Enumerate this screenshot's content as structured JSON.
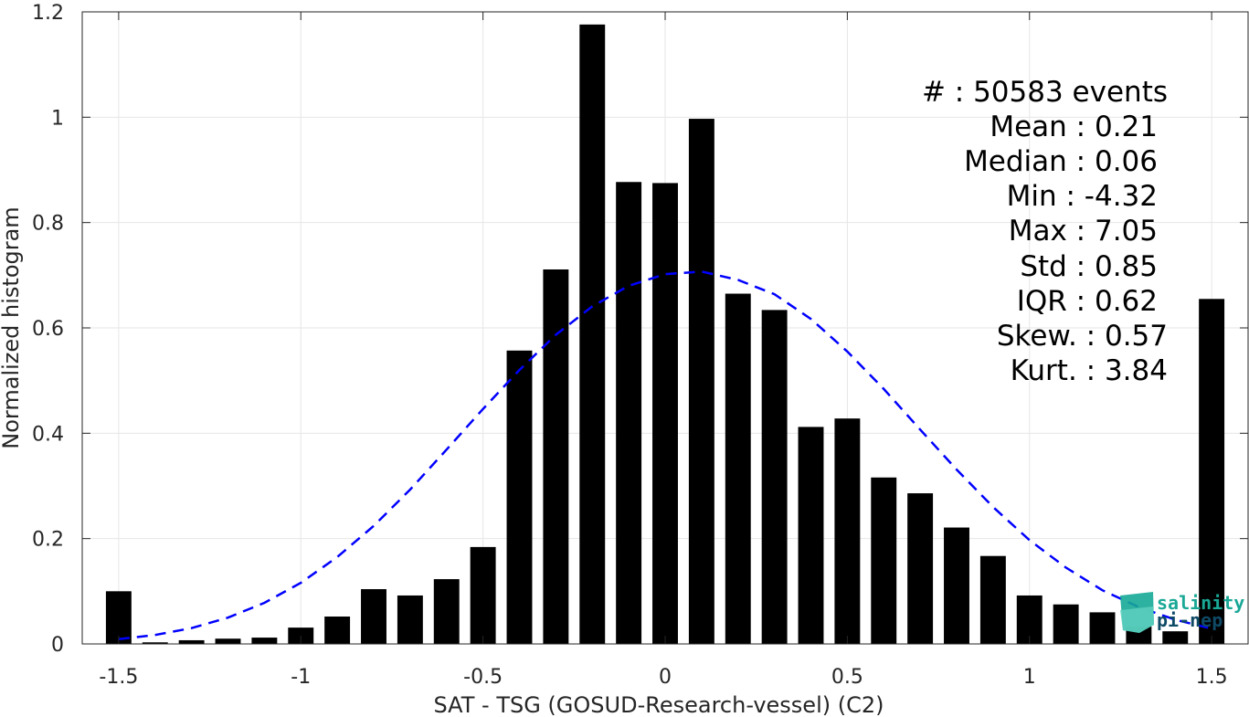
{
  "chart_data": {
    "type": "bar",
    "xlabel": "SAT - TSG (GOSUD-Research-vessel) (C2)",
    "ylabel": "Normalized histogram",
    "xlim": [
      -1.6,
      1.6
    ],
    "ylim": [
      0,
      1.2
    ],
    "grid": true,
    "x_ticks": [
      -1.5,
      -1,
      -0.5,
      0,
      0.5,
      1,
      1.5
    ],
    "x_tick_labels": [
      "-1.5",
      "-1",
      "-0.5",
      "0",
      "0.5",
      "1",
      "1.5"
    ],
    "y_ticks": [
      0,
      0.2,
      0.4,
      0.6,
      0.8,
      1,
      1.2
    ],
    "y_tick_labels": [
      "0",
      "0.2",
      "0.4",
      "0.6",
      "0.8",
      "1",
      "1.2"
    ],
    "bar_width": 0.07,
    "bars": {
      "x": [
        -1.5,
        -1.4,
        -1.3,
        -1.2,
        -1.1,
        -1.0,
        -0.9,
        -0.8,
        -0.7,
        -0.6,
        -0.5,
        -0.4,
        -0.3,
        -0.2,
        -0.1,
        0.0,
        0.1,
        0.2,
        0.3,
        0.4,
        0.5,
        0.6,
        0.7,
        0.8,
        0.9,
        1.0,
        1.1,
        1.2,
        1.3,
        1.4,
        1.5
      ],
      "values": [
        0.1,
        0.003,
        0.007,
        0.01,
        0.012,
        0.031,
        0.052,
        0.104,
        0.092,
        0.123,
        0.184,
        0.557,
        0.711,
        1.176,
        0.877,
        0.875,
        0.997,
        0.665,
        0.634,
        0.412,
        0.428,
        0.316,
        0.286,
        0.221,
        0.167,
        0.092,
        0.075,
        0.06,
        0.033,
        0.024,
        0.655
      ],
      "color": "#000000"
    },
    "fit_curve": {
      "style": "dashed",
      "color": "#0000ff",
      "x": [
        -1.5,
        -1.4,
        -1.3,
        -1.2,
        -1.1,
        -1.0,
        -0.9,
        -0.8,
        -0.7,
        -0.6,
        -0.5,
        -0.4,
        -0.3,
        -0.2,
        -0.1,
        0.0,
        0.1,
        0.2,
        0.3,
        0.4,
        0.5,
        0.6,
        0.7,
        0.8,
        0.9,
        1.0,
        1.1,
        1.2,
        1.3,
        1.4,
        1.5
      ],
      "y": [
        0.009,
        0.017,
        0.03,
        0.05,
        0.078,
        0.116,
        0.165,
        0.224,
        0.293,
        0.369,
        0.446,
        0.52,
        0.587,
        0.641,
        0.68,
        0.702,
        0.707,
        0.691,
        0.664,
        0.617,
        0.555,
        0.484,
        0.407,
        0.331,
        0.26,
        0.197,
        0.145,
        0.102,
        0.07,
        0.046,
        0.029
      ]
    },
    "annotations": [
      "#  : 50583 events",
      "Mean : 0.21",
      "Median : 0.06",
      "Min : -4.32",
      "Max : 7.05",
      "Std : 0.85",
      "IQR : 0.62",
      "Skew. : 0.57",
      "Kurt. : 3.84"
    ],
    "annotation_placement": "top-right"
  },
  "logo": {
    "line1": "salinity",
    "line2": "pi-nep"
  }
}
